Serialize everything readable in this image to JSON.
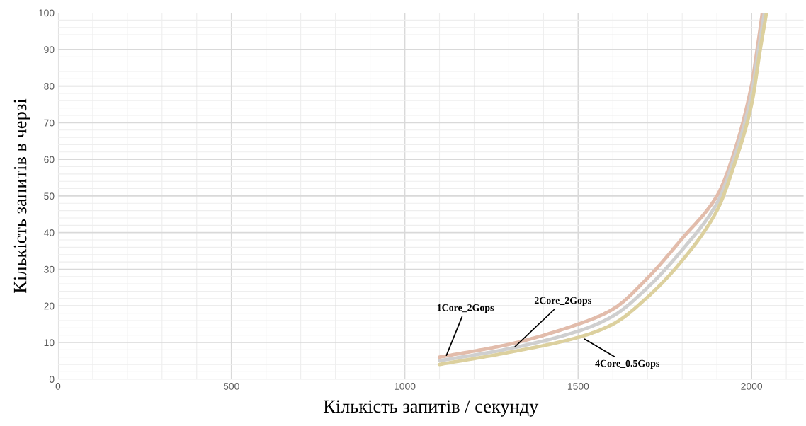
{
  "chart_data": {
    "type": "line",
    "xlabel": "Кількість запитів / секунду",
    "ylabel": "Кількість запитів в черзі",
    "xlim": [
      0,
      2150
    ],
    "xticks": [
      0,
      500,
      1000,
      1500,
      2000
    ],
    "ylim": [
      0,
      100
    ],
    "yticks": [
      0,
      10,
      20,
      30,
      40,
      50,
      60,
      70,
      80,
      90,
      100
    ],
    "grid": true,
    "marker": "none",
    "line_style": "solid",
    "series": [
      {
        "color": "#e2bcab",
        "x": [
          1100,
          1300,
          1500,
          1600,
          1700,
          1800,
          1900,
          1950,
          2000,
          2016,
          2031
        ],
        "values": [
          6.0,
          9.5,
          15.0,
          19.1,
          27.6,
          38.4,
          50.0,
          62.0,
          80.3,
          90,
          100
        ]
      },
      {
        "color": "#cfcfcf",
        "x": [
          1100,
          1300,
          1500,
          1600,
          1700,
          1800,
          1900,
          1950,
          2000,
          2020,
          2037
        ],
        "values": [
          5.0,
          8.3,
          13.1,
          17.2,
          25.0,
          35.3,
          48.0,
          60.4,
          77.8,
          90,
          100
        ]
      },
      {
        "color": "#dcd09e",
        "x": [
          1100,
          1300,
          1500,
          1600,
          1700,
          1800,
          1900,
          1950,
          2000,
          2025,
          2043
        ],
        "values": [
          4.0,
          7.3,
          11.4,
          15.0,
          22.4,
          32.4,
          46.0,
          58.5,
          75.0,
          90,
          100
        ]
      }
    ],
    "annotations": [
      {
        "text": "1Core_2Gops",
        "x": 1118,
        "y": 6
      },
      {
        "text": "2Core_2Gops",
        "x": 1314,
        "y": 8.5
      },
      {
        "text": "4Core_0.5Gops",
        "x": 1514,
        "y": 11.2
      }
    ]
  }
}
